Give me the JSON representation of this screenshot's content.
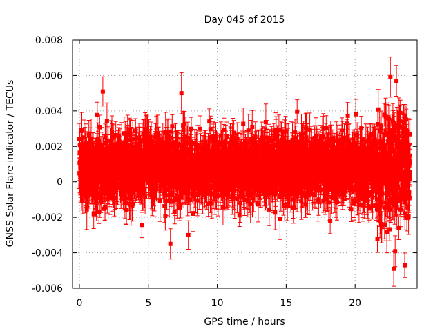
{
  "chart_data": {
    "type": "scatter",
    "title": "Day 045 of 2015",
    "xlabel": "GPS time / hours",
    "ylabel": "GNSS Solar Flare indicator / TECUs",
    "xlim": [
      -0.5,
      24.5
    ],
    "ylim": [
      -0.006,
      0.008
    ],
    "xticks": [
      0,
      5,
      10,
      15,
      20
    ],
    "xtick_labels": [
      "0",
      "5",
      "10",
      "15",
      "20"
    ],
    "yticks": [
      -0.006,
      -0.004,
      -0.002,
      0,
      0.002,
      0.004,
      0.006,
      0.008
    ],
    "ytick_labels": [
      "-0.006",
      "-0.004",
      "-0.002",
      "0",
      "0.002",
      "0.004",
      "0.006",
      "0.008"
    ],
    "grid": true,
    "legend": "none",
    "series_color": "#ff0000",
    "series": {
      "x_range": [
        0,
        24
      ],
      "sample_interval_hours": 0.0083,
      "y_mean": 0.0008,
      "y_spread": 0.0012,
      "error_bar_typical": 0.0009,
      "late_day_start_hours": 21.5,
      "late_day_y_spread": 0.002,
      "notable_points": [
        {
          "x": 1.7,
          "y": 0.0051
        },
        {
          "x": 6.6,
          "y": -0.0035
        },
        {
          "x": 7.4,
          "y": 0.005
        },
        {
          "x": 7.9,
          "y": -0.003
        },
        {
          "x": 22.8,
          "y": -0.0049
        },
        {
          "x": 23.0,
          "y": 0.0057
        },
        {
          "x": 23.6,
          "y": -0.0047
        }
      ]
    }
  }
}
